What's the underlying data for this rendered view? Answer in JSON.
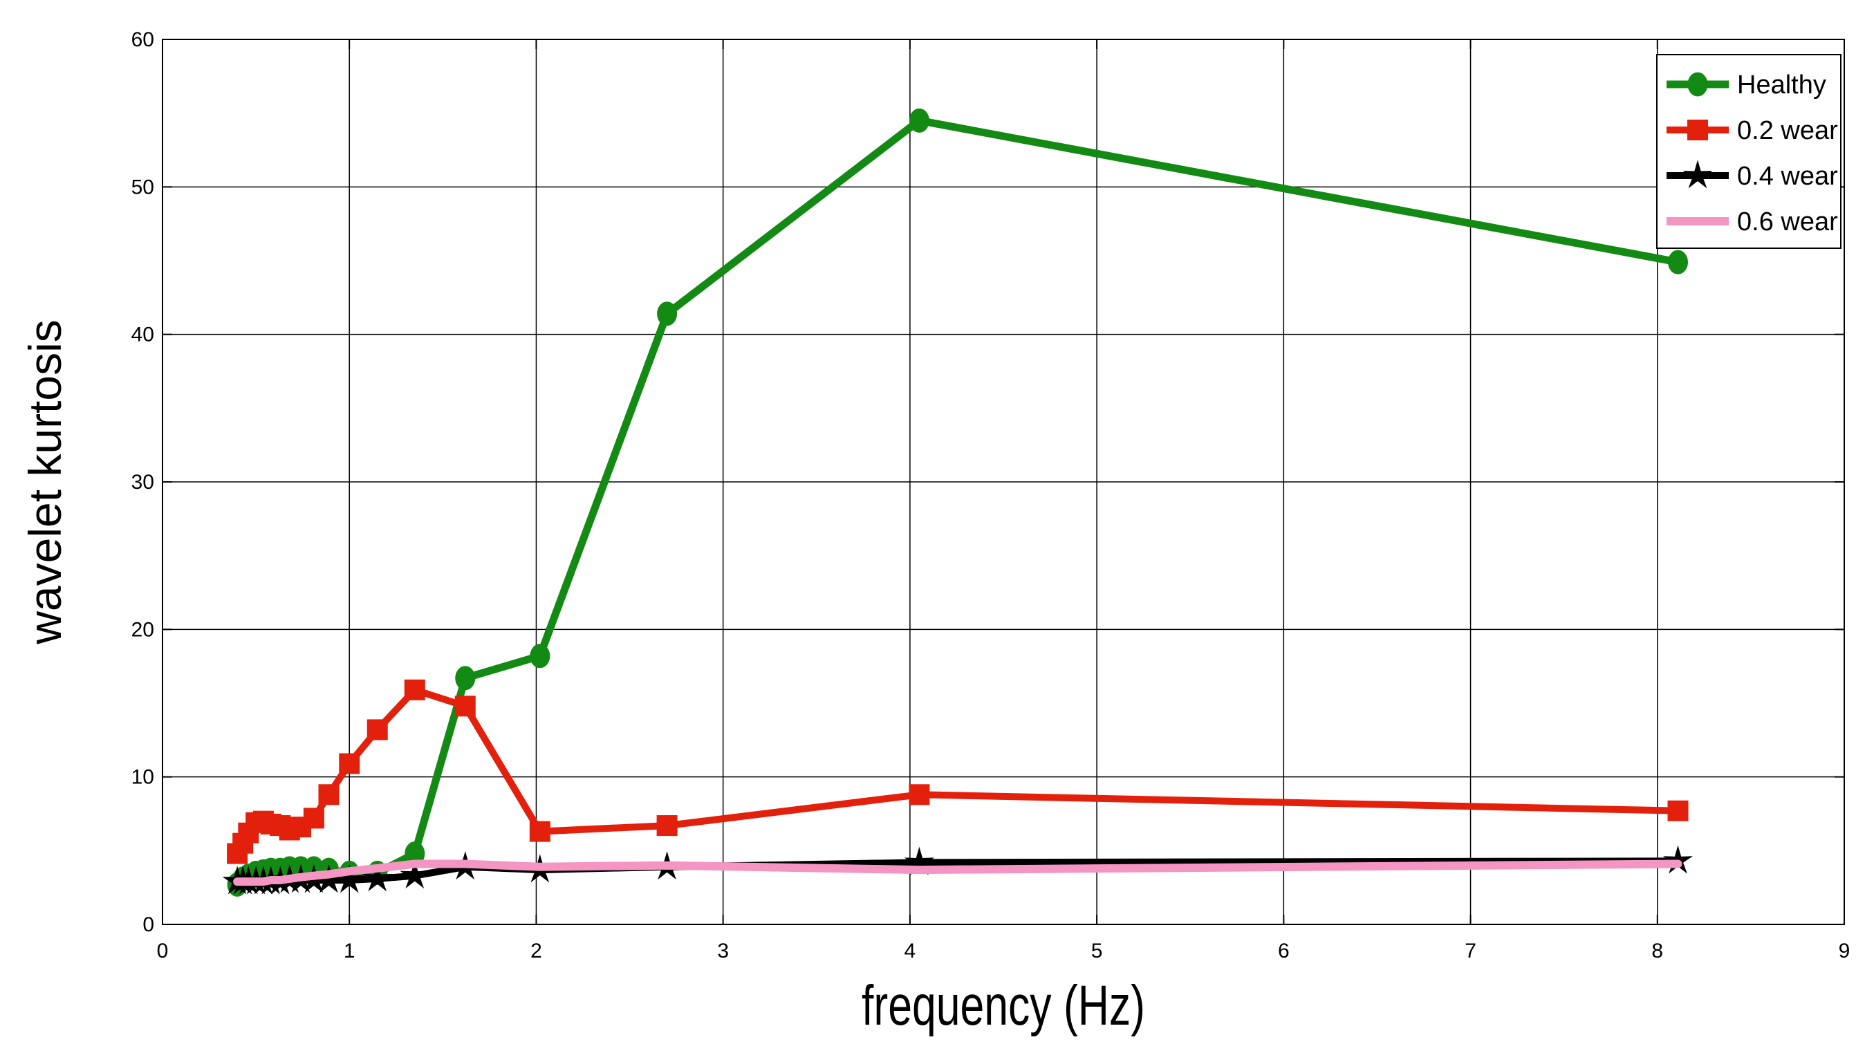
{
  "chart_data": {
    "type": "line",
    "title": "",
    "xlabel": "frequency (Hz)",
    "ylabel": "wavelet kurtosis",
    "xlim": [
      0,
      9
    ],
    "ylim": [
      0,
      60
    ],
    "xticks": [
      0,
      1,
      2,
      3,
      4,
      5,
      6,
      7,
      8,
      9
    ],
    "yticks": [
      0,
      10,
      20,
      30,
      40,
      50,
      60
    ],
    "grid": true,
    "legend_position": "top-right",
    "series": [
      {
        "name": "Healthy",
        "color": "#138a13",
        "marker": "circle",
        "x": [
          0.4,
          0.43,
          0.46,
          0.5,
          0.54,
          0.58,
          0.63,
          0.68,
          0.74,
          0.81,
          0.89,
          1.0,
          1.15,
          1.35,
          1.62,
          2.02,
          2.7,
          4.05,
          8.11
        ],
        "y": [
          2.7,
          3.1,
          3.3,
          3.5,
          3.6,
          3.7,
          3.7,
          3.8,
          3.8,
          3.8,
          3.7,
          3.5,
          3.5,
          4.8,
          16.7,
          18.2,
          41.4,
          54.5,
          44.9
        ]
      },
      {
        "name": "0.2 wear",
        "color": "#e3200b",
        "marker": "square",
        "x": [
          0.4,
          0.43,
          0.46,
          0.5,
          0.54,
          0.58,
          0.63,
          0.68,
          0.74,
          0.81,
          0.89,
          1.0,
          1.15,
          1.35,
          1.62,
          2.02,
          2.7,
          4.05,
          8.11
        ],
        "y": [
          4.8,
          5.5,
          6.2,
          6.9,
          7.0,
          6.8,
          6.7,
          6.4,
          6.6,
          7.2,
          8.8,
          10.9,
          13.2,
          15.9,
          14.8,
          6.3,
          6.7,
          8.8,
          7.7
        ]
      },
      {
        "name": "0.4 wear",
        "color": "#000000",
        "marker": "star",
        "x": [
          0.4,
          0.43,
          0.46,
          0.5,
          0.54,
          0.58,
          0.63,
          0.68,
          0.74,
          0.81,
          0.89,
          1.0,
          1.15,
          1.35,
          1.62,
          2.02,
          2.7,
          4.05,
          8.11
        ],
        "y": [
          2.9,
          2.9,
          2.9,
          2.9,
          2.9,
          2.9,
          2.9,
          3.0,
          3.0,
          3.0,
          3.0,
          3.0,
          3.1,
          3.3,
          3.9,
          3.7,
          3.9,
          4.2,
          4.3
        ]
      },
      {
        "name": "0.6 wear",
        "color": "#f495c3",
        "marker": "dot",
        "x": [
          0.4,
          0.43,
          0.46,
          0.5,
          0.54,
          0.58,
          0.63,
          0.68,
          0.74,
          0.81,
          0.89,
          1.0,
          1.15,
          1.35,
          1.62,
          2.02,
          2.7,
          4.05,
          8.11
        ],
        "y": [
          2.9,
          2.9,
          2.9,
          2.9,
          2.9,
          3.0,
          3.0,
          3.1,
          3.2,
          3.3,
          3.4,
          3.6,
          3.8,
          4.1,
          4.1,
          3.9,
          4.0,
          3.7,
          4.1
        ]
      }
    ]
  }
}
